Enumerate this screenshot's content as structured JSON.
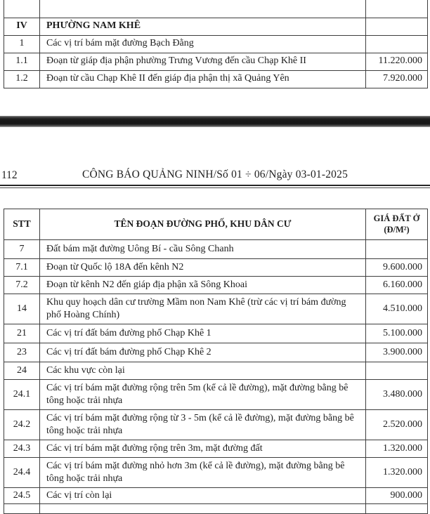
{
  "page1_table": {
    "rows": [
      {
        "stt": "IV",
        "name": "PHƯỜNG NAM KHÊ",
        "price": ""
      },
      {
        "stt": "1",
        "name": "Các vị trí bám mặt đường Bạch Đằng",
        "price": ""
      },
      {
        "stt": "1.1",
        "name": "Đoạn từ giáp địa phận phường Trưng Vương đến cầu Chạp Khê II",
        "price": "11.220.000"
      },
      {
        "stt": "1.2",
        "name": "Đoạn từ cầu Chạp Khê II đến giáp địa phận thị xã Quảng Yên",
        "price": "7.920.000"
      }
    ]
  },
  "page_header": {
    "page_number": "112",
    "title": "CÔNG BÁO QUẢNG NINH/Số 01 ÷ 06/Ngày 03-01-2025"
  },
  "page2_table": {
    "headers": {
      "stt": "STT",
      "name": "TÊN ĐOẠN ĐƯỜNG PHỐ, KHU DÂN CƯ",
      "price_line1": "GIÁ ĐẤT Ở",
      "price_line2": "(Đ/M²)"
    },
    "rows": [
      {
        "stt": "7",
        "name": "Đất bám mặt đường Uông Bí - cầu Sông Chanh",
        "price": ""
      },
      {
        "stt": "7.1",
        "name": "Đoạn từ Quốc lộ 18A đến kênh N2",
        "price": "9.600.000"
      },
      {
        "stt": "7.2",
        "name": "Đoạn từ kênh N2 đến giáp địa phận xã Sông Khoai",
        "price": "6.160.000"
      },
      {
        "stt": "14",
        "name": "Khu quy hoạch dân cư trường Mầm non Nam Khê (trừ các vị trí bám đường phố Hoàng Chính)",
        "price": "4.510.000"
      },
      {
        "stt": "21",
        "name": "Các vị trí đất bám đường phố Chạp Khê 1",
        "price": "5.100.000"
      },
      {
        "stt": "23",
        "name": "Các vị trí đất bám đường phố Chạp Khê 2",
        "price": "3.900.000"
      },
      {
        "stt": "24",
        "name": "Các khu vực còn lại",
        "price": ""
      },
      {
        "stt": "24.1",
        "name": "Các vị trí bám mặt đường rộng trên 5m (kể cả lề đường), mặt đường bằng bê tông hoặc trải nhựa",
        "price": "3.480.000"
      },
      {
        "stt": "24.2",
        "name": "Các vị trí bám mặt đường rộng từ 3 - 5m (kể cả lề đường), mặt đường bằng bê tông hoặc trải nhựa",
        "price": "2.520.000"
      },
      {
        "stt": "24.3",
        "name": "Các vị trí bám mặt đường rộng trên 3m, mặt đường đất",
        "price": "1.320.000"
      },
      {
        "stt": "24.4",
        "name": "Các vị trí bám mặt đường nhỏ hơn 3m (kể cả lề đường), mặt đường bằng bê tông hoặc trải nhựa",
        "price": "1.320.000"
      },
      {
        "stt": "24.5",
        "name": "Các vị trí còn lại",
        "price": "900.000"
      }
    ]
  }
}
